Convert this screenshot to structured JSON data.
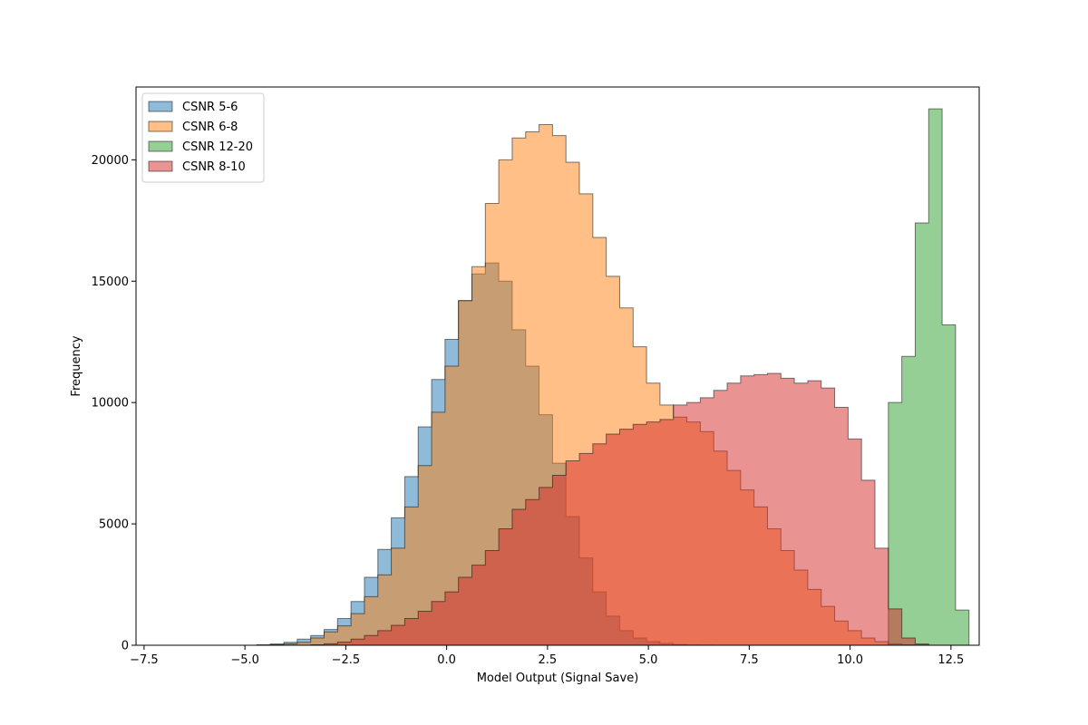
{
  "chart_data": {
    "type": "histogram",
    "xlabel": "Model Output (Signal Save)",
    "ylabel": "Frequency",
    "xlim": [
      -7.7,
      13.2
    ],
    "ylim": [
      0,
      23000
    ],
    "xticks": [
      -7.5,
      -5.0,
      -2.5,
      0.0,
      2.5,
      5.0,
      7.5,
      10.0,
      12.5
    ],
    "xtick_labels": [
      "−7.5",
      "−5.0",
      "−2.5",
      "0.0",
      "2.5",
      "5.0",
      "7.5",
      "10.0",
      "12.5"
    ],
    "yticks": [
      0,
      5000,
      10000,
      15000,
      20000
    ],
    "ytick_labels": [
      "0",
      "5000",
      "10000",
      "15000",
      "20000"
    ],
    "bin_width": 0.333,
    "legend_position": "upper-left",
    "grid": false,
    "series": [
      {
        "name": "CSNR 5-6",
        "color": "#1f77b4",
        "x_start": -6.7,
        "counts": [
          0,
          0,
          0,
          0,
          0,
          0,
          20,
          50,
          120,
          250,
          400,
          650,
          1100,
          1800,
          2800,
          3950,
          5250,
          6950,
          9000,
          10950,
          12600,
          14200,
          15300,
          15750,
          15000,
          13000,
          11500,
          9500,
          7500,
          5300,
          3600,
          2200,
          1200,
          600,
          300,
          150,
          80,
          30,
          10,
          5,
          0,
          0,
          0,
          0,
          0,
          0,
          0,
          0,
          0,
          0,
          0,
          0,
          0,
          0,
          0,
          0,
          0,
          0,
          0
        ]
      },
      {
        "name": "CSNR 6-8",
        "color": "#ff7f0e",
        "x_start": -6.7,
        "counts": [
          0,
          0,
          0,
          0,
          0,
          0,
          10,
          30,
          60,
          120,
          300,
          550,
          800,
          1300,
          2000,
          2900,
          4000,
          5700,
          7400,
          9600,
          11500,
          14200,
          15600,
          18200,
          20000,
          20900,
          21150,
          21450,
          21000,
          19900,
          18600,
          16800,
          15200,
          13900,
          12300,
          10800,
          9900,
          9400,
          9200,
          8800,
          8000,
          7200,
          6400,
          5700,
          4800,
          3900,
          3100,
          2300,
          1600,
          1000,
          600,
          300,
          150,
          60,
          20,
          5,
          0,
          0,
          0
        ]
      },
      {
        "name": "CSNR 12-20",
        "color": "#2ca02c",
        "x_start": -6.7,
        "counts": [
          0,
          0,
          0,
          0,
          0,
          0,
          0,
          0,
          0,
          0,
          0,
          0,
          0,
          0,
          0,
          0,
          0,
          0,
          0,
          0,
          0,
          0,
          0,
          0,
          0,
          0,
          0,
          0,
          0,
          0,
          0,
          0,
          0,
          0,
          0,
          0,
          0,
          0,
          0,
          0,
          0,
          0,
          0,
          0,
          0,
          0,
          0,
          0,
          0,
          0,
          0,
          0,
          0,
          10000,
          11900,
          17400,
          22100,
          13200,
          1450
        ]
      },
      {
        "name": "CSNR 8-10",
        "color": "#d62728",
        "x_start": -6.7,
        "counts": [
          0,
          0,
          0,
          0,
          0,
          0,
          0,
          0,
          0,
          0,
          20,
          60,
          130,
          250,
          400,
          600,
          820,
          1100,
          1400,
          1800,
          2200,
          2800,
          3300,
          3900,
          4800,
          5600,
          6000,
          6500,
          7000,
          7600,
          7900,
          8300,
          8700,
          8900,
          9100,
          9200,
          9300,
          9900,
          10000,
          10200,
          10500,
          10800,
          11100,
          11150,
          11200,
          11000,
          10800,
          10900,
          10600,
          9800,
          8500,
          6800,
          4000,
          1500,
          300,
          50,
          0,
          0,
          0
        ]
      }
    ]
  }
}
